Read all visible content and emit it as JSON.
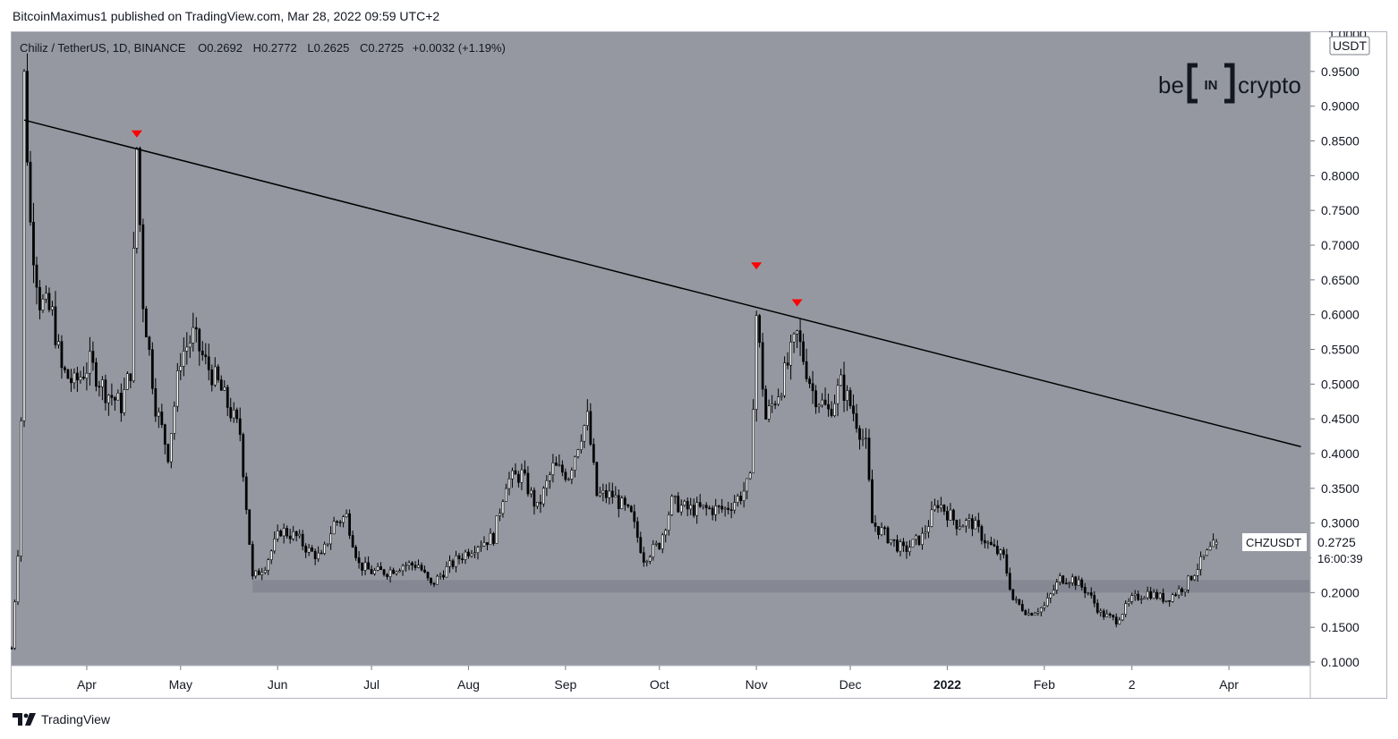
{
  "byline": "BitcoinMaximus1 published on TradingView.com, Mar 28, 2022 09:59 UTC+2",
  "footer": {
    "brand": "TradingView",
    "logo_icon": "tradingview-logo-icon"
  },
  "watermark": {
    "left": "be",
    "center": "IN",
    "right": "crypto"
  },
  "legend": {
    "symbol": "Chiliz / TetherUS, 1D, BINANCE",
    "o_label": "O",
    "o_value": "0.2692",
    "h_label": "H",
    "h_value": "0.2772",
    "l_label": "L",
    "l_value": "0.2625",
    "c_label": "C",
    "c_value": "0.2725",
    "change": "+0.0032 (+1.19%)"
  },
  "price_tag": {
    "symbol": "CHZUSDT",
    "price": "0.2725",
    "countdown": "16:00:39"
  },
  "colors": {
    "plot_bg": "#9598a1",
    "candle_body": "#ffffff",
    "candle_border": "#000000",
    "trendline": "#000000",
    "marker": "#ff0000",
    "support_zone": "#787b86"
  },
  "chart_data": {
    "type": "candlestick",
    "title": "Chiliz / TetherUS, 1D, BINANCE",
    "xlabel": "",
    "ylabel": "",
    "y_unit": "USDT",
    "ylim": [
      0.1,
      1.0
    ],
    "y_ticks": [
      "1.0000",
      "0.9500",
      "0.9000",
      "0.8500",
      "0.8000",
      "0.7500",
      "0.7000",
      "0.6500",
      "0.6000",
      "0.5500",
      "0.5000",
      "0.4500",
      "0.4000",
      "0.3500",
      "0.3000",
      "0.2500",
      "0.2000",
      "0.1500",
      "0.1000"
    ],
    "x_start": "2021-03-08",
    "x_end": "2022-04-27",
    "x_ticks": [
      {
        "date": "2021-04-01",
        "label": "Apr"
      },
      {
        "date": "2021-05-01",
        "label": "May"
      },
      {
        "date": "2021-06-01",
        "label": "Jun"
      },
      {
        "date": "2021-07-01",
        "label": "Jul"
      },
      {
        "date": "2021-08-01",
        "label": "Aug"
      },
      {
        "date": "2021-09-01",
        "label": "Sep"
      },
      {
        "date": "2021-10-01",
        "label": "Oct"
      },
      {
        "date": "2021-11-01",
        "label": "Nov"
      },
      {
        "date": "2021-12-01",
        "label": "Dec"
      },
      {
        "date": "2022-01-01",
        "label": "2022",
        "bold": true
      },
      {
        "date": "2022-02-01",
        "label": "Feb"
      },
      {
        "date": "2022-03-01",
        "label": "2"
      },
      {
        "date": "2022-04-01",
        "label": "Apr"
      }
    ],
    "price_path": [
      [
        "2021-03-08",
        0.12
      ],
      [
        "2021-03-10",
        0.26
      ],
      [
        "2021-03-11",
        0.45
      ],
      [
        "2021-03-12",
        0.94
      ],
      [
        "2021-03-14",
        0.73
      ],
      [
        "2021-03-17",
        0.62
      ],
      [
        "2021-03-21",
        0.6
      ],
      [
        "2021-03-24",
        0.52
      ],
      [
        "2021-03-28",
        0.5
      ],
      [
        "2021-04-02",
        0.53
      ],
      [
        "2021-04-07",
        0.49
      ],
      [
        "2021-04-12",
        0.47
      ],
      [
        "2021-04-15",
        0.52
      ],
      [
        "2021-04-17",
        0.84
      ],
      [
        "2021-04-19",
        0.62
      ],
      [
        "2021-04-23",
        0.47
      ],
      [
        "2021-04-27",
        0.4
      ],
      [
        "2021-05-01",
        0.54
      ],
      [
        "2021-05-05",
        0.57
      ],
      [
        "2021-05-09",
        0.53
      ],
      [
        "2021-05-13",
        0.5
      ],
      [
        "2021-05-17",
        0.46
      ],
      [
        "2021-05-20",
        0.43
      ],
      [
        "2021-05-24",
        0.22
      ],
      [
        "2021-05-28",
        0.24
      ],
      [
        "2021-06-02",
        0.29
      ],
      [
        "2021-06-07",
        0.28
      ],
      [
        "2021-06-11",
        0.26
      ],
      [
        "2021-06-15",
        0.25
      ],
      [
        "2021-06-19",
        0.3
      ],
      [
        "2021-06-23",
        0.31
      ],
      [
        "2021-06-27",
        0.24
      ],
      [
        "2021-07-01",
        0.23
      ],
      [
        "2021-07-06",
        0.23
      ],
      [
        "2021-07-11",
        0.24
      ],
      [
        "2021-07-16",
        0.24
      ],
      [
        "2021-07-20",
        0.21
      ],
      [
        "2021-07-24",
        0.23
      ],
      [
        "2021-07-29",
        0.25
      ],
      [
        "2021-08-04",
        0.27
      ],
      [
        "2021-08-09",
        0.28
      ],
      [
        "2021-08-13",
        0.36
      ],
      [
        "2021-08-18",
        0.37
      ],
      [
        "2021-08-23",
        0.32
      ],
      [
        "2021-08-28",
        0.38
      ],
      [
        "2021-09-02",
        0.37
      ],
      [
        "2021-09-06",
        0.43
      ],
      [
        "2021-09-08",
        0.45
      ],
      [
        "2021-09-11",
        0.34
      ],
      [
        "2021-09-16",
        0.34
      ],
      [
        "2021-09-22",
        0.31
      ],
      [
        "2021-09-26",
        0.25
      ],
      [
        "2021-10-01",
        0.27
      ],
      [
        "2021-10-05",
        0.33
      ],
      [
        "2021-10-10",
        0.32
      ],
      [
        "2021-10-15",
        0.32
      ],
      [
        "2021-10-22",
        0.32
      ],
      [
        "2021-10-27",
        0.34
      ],
      [
        "2021-10-30",
        0.36
      ],
      [
        "2021-11-01",
        0.6
      ],
      [
        "2021-11-04",
        0.45
      ],
      [
        "2021-11-09",
        0.5
      ],
      [
        "2021-11-14",
        0.57
      ],
      [
        "2021-11-19",
        0.49
      ],
      [
        "2021-11-24",
        0.46
      ],
      [
        "2021-11-28",
        0.5
      ],
      [
        "2021-12-02",
        0.46
      ],
      [
        "2021-12-06",
        0.41
      ],
      [
        "2021-12-08",
        0.3
      ],
      [
        "2021-12-13",
        0.28
      ],
      [
        "2021-12-18",
        0.26
      ],
      [
        "2021-12-24",
        0.28
      ],
      [
        "2021-12-29",
        0.33
      ],
      [
        "2022-01-04",
        0.3
      ],
      [
        "2022-01-09",
        0.3
      ],
      [
        "2022-01-14",
        0.27
      ],
      [
        "2022-01-19",
        0.25
      ],
      [
        "2022-01-22",
        0.19
      ],
      [
        "2022-01-27",
        0.17
      ],
      [
        "2022-02-01",
        0.18
      ],
      [
        "2022-02-06",
        0.22
      ],
      [
        "2022-02-10",
        0.22
      ],
      [
        "2022-02-15",
        0.2
      ],
      [
        "2022-02-19",
        0.17
      ],
      [
        "2022-02-24",
        0.16
      ],
      [
        "2022-03-01",
        0.19
      ],
      [
        "2022-03-06",
        0.2
      ],
      [
        "2022-03-12",
        0.19
      ],
      [
        "2022-03-18",
        0.21
      ],
      [
        "2022-03-24",
        0.25
      ],
      [
        "2022-03-28",
        0.2725
      ]
    ],
    "candle_count": 386,
    "last_candle": {
      "open": 0.2692,
      "high": 0.2772,
      "low": 0.2625,
      "close": 0.2725
    },
    "trendline": [
      [
        "2021-03-12",
        0.88
      ],
      [
        "2022-04-24",
        0.41
      ]
    ],
    "support_zone": {
      "x_start": "2021-05-24",
      "x_end": "2022-04-27",
      "y_low": 0.2,
      "y_high": 0.218
    },
    "markers": [
      {
        "date": "2021-04-17",
        "price": 0.86
      },
      {
        "date": "2021-11-01",
        "price": 0.67
      },
      {
        "date": "2021-11-14",
        "price": 0.617
      }
    ],
    "legend_placement": "top-left",
    "grid": false
  }
}
